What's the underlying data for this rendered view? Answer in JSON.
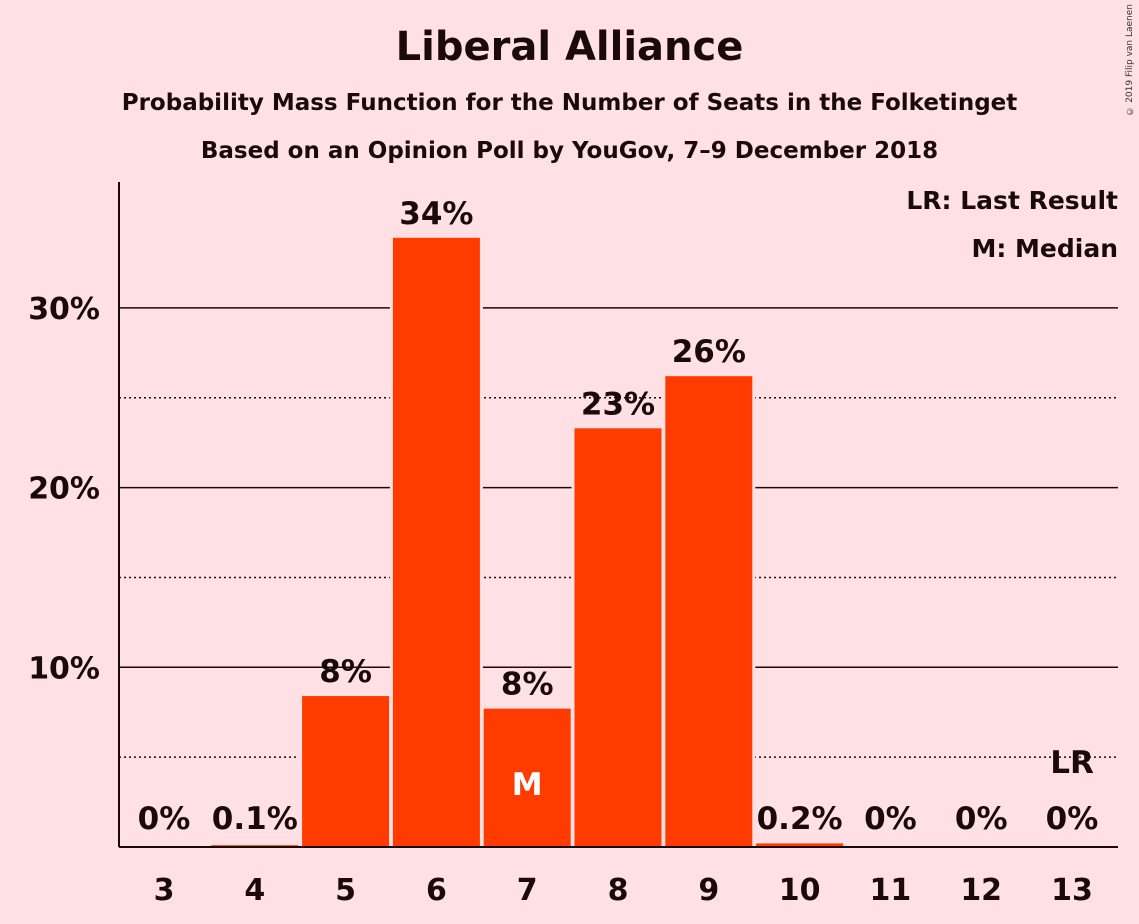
{
  "title": "Liberal Alliance",
  "subtitle1": "Probability Mass Function for the Number of Seats in the Folketinget",
  "subtitle2": "Based on an Opinion Poll by YouGov, 7–9 December 2018",
  "copyright": "© 2019 Filip van Laenen",
  "legend": {
    "last_result": "LR: Last Result",
    "median": "M: Median"
  },
  "colors": {
    "background": "#FFE1E5",
    "bar": "#FF3B00",
    "text": "#1a0a0a"
  },
  "chart_data": {
    "type": "bar",
    "categories": [
      "3",
      "4",
      "5",
      "6",
      "7",
      "8",
      "9",
      "10",
      "11",
      "12",
      "13"
    ],
    "values": [
      0,
      0.1,
      8.4,
      33.9,
      7.7,
      23.3,
      26.2,
      0.2,
      0,
      0,
      0
    ],
    "value_labels": [
      "0%",
      "0.1%",
      "8%",
      "34%",
      "8%",
      "23%",
      "26%",
      "0.2%",
      "0%",
      "0%",
      "0%"
    ],
    "y_ticks": [
      {
        "value": 10,
        "label": "10%"
      },
      {
        "value": 20,
        "label": "20%"
      },
      {
        "value": 30,
        "label": "30%"
      }
    ],
    "minor_gridlines": [
      5,
      15,
      25
    ],
    "ylim": [
      0,
      37
    ],
    "markers": [
      {
        "category": "7",
        "label": "M",
        "position": "inside-bar"
      },
      {
        "category": "13",
        "label": "LR",
        "position": "above-label"
      }
    ],
    "legend_position": "top-right"
  }
}
